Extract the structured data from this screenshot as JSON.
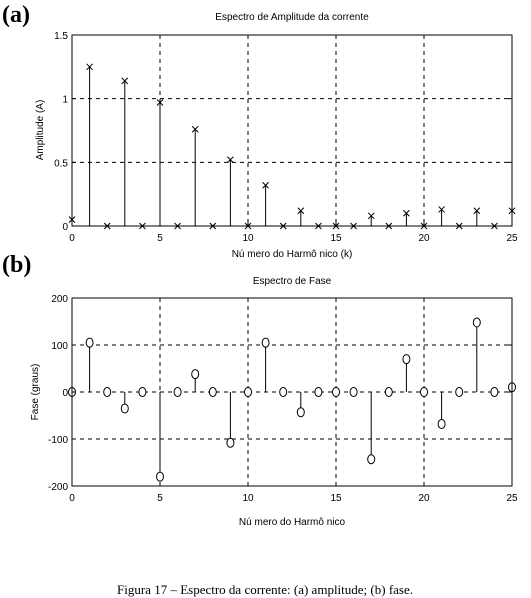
{
  "caption": "Figura 17 – Espectro da corrente: (a) amplitude; (b) fase.",
  "chart_data": [
    {
      "panel_label": "(a)",
      "type": "stem",
      "marker": "x",
      "title": "Espectro de Amplitude da corrente",
      "xlabel": "Nú mero do Harmô nico (k)",
      "ylabel": "Amplitude (A)",
      "xlim": [
        0,
        25
      ],
      "ylim": [
        0,
        1.5
      ],
      "xticks": [
        0,
        5,
        10,
        15,
        20,
        25
      ],
      "yticks": [
        0,
        0.5,
        1,
        1.5
      ],
      "xticklabels": [
        "0",
        "5",
        "10",
        "15",
        "20",
        "25"
      ],
      "yticklabels": [
        "0",
        "0.5",
        "1",
        "1.5"
      ],
      "grid": true,
      "x": [
        0,
        1,
        2,
        3,
        4,
        5,
        6,
        7,
        8,
        9,
        10,
        11,
        12,
        13,
        14,
        15,
        16,
        17,
        18,
        19,
        20,
        21,
        22,
        23,
        24,
        25
      ],
      "values": [
        0.05,
        1.25,
        0,
        1.14,
        0,
        0.97,
        0,
        0.76,
        0,
        0.52,
        0,
        0.32,
        0,
        0.12,
        0,
        0,
        0,
        0.08,
        0,
        0.1,
        0,
        0.13,
        0,
        0.12,
        0,
        0.12
      ]
    },
    {
      "panel_label": "(b)",
      "type": "stem",
      "marker": "o",
      "title": "Espectro de Fase",
      "xlabel": "Nú mero do Harmô nico",
      "ylabel": "Fase (graus)",
      "xlim": [
        0,
        25
      ],
      "ylim": [
        -200,
        200
      ],
      "xticks": [
        0,
        5,
        10,
        15,
        20,
        25
      ],
      "yticks": [
        -200,
        -100,
        0,
        100,
        200
      ],
      "xticklabels": [
        "0",
        "5",
        "10",
        "15",
        "20",
        "25"
      ],
      "yticklabels": [
        "-200",
        "-100",
        "0",
        "100",
        "200"
      ],
      "grid": true,
      "x": [
        0,
        1,
        2,
        3,
        4,
        5,
        6,
        7,
        8,
        9,
        10,
        11,
        12,
        13,
        14,
        15,
        16,
        17,
        18,
        19,
        20,
        21,
        22,
        23,
        24,
        25
      ],
      "values": [
        0,
        105,
        0,
        -35,
        0,
        -180,
        0,
        38,
        0,
        -108,
        0,
        105,
        0,
        -43,
        0,
        0,
        0,
        -143,
        0,
        70,
        0,
        -68,
        0,
        148,
        0,
        10
      ]
    }
  ]
}
